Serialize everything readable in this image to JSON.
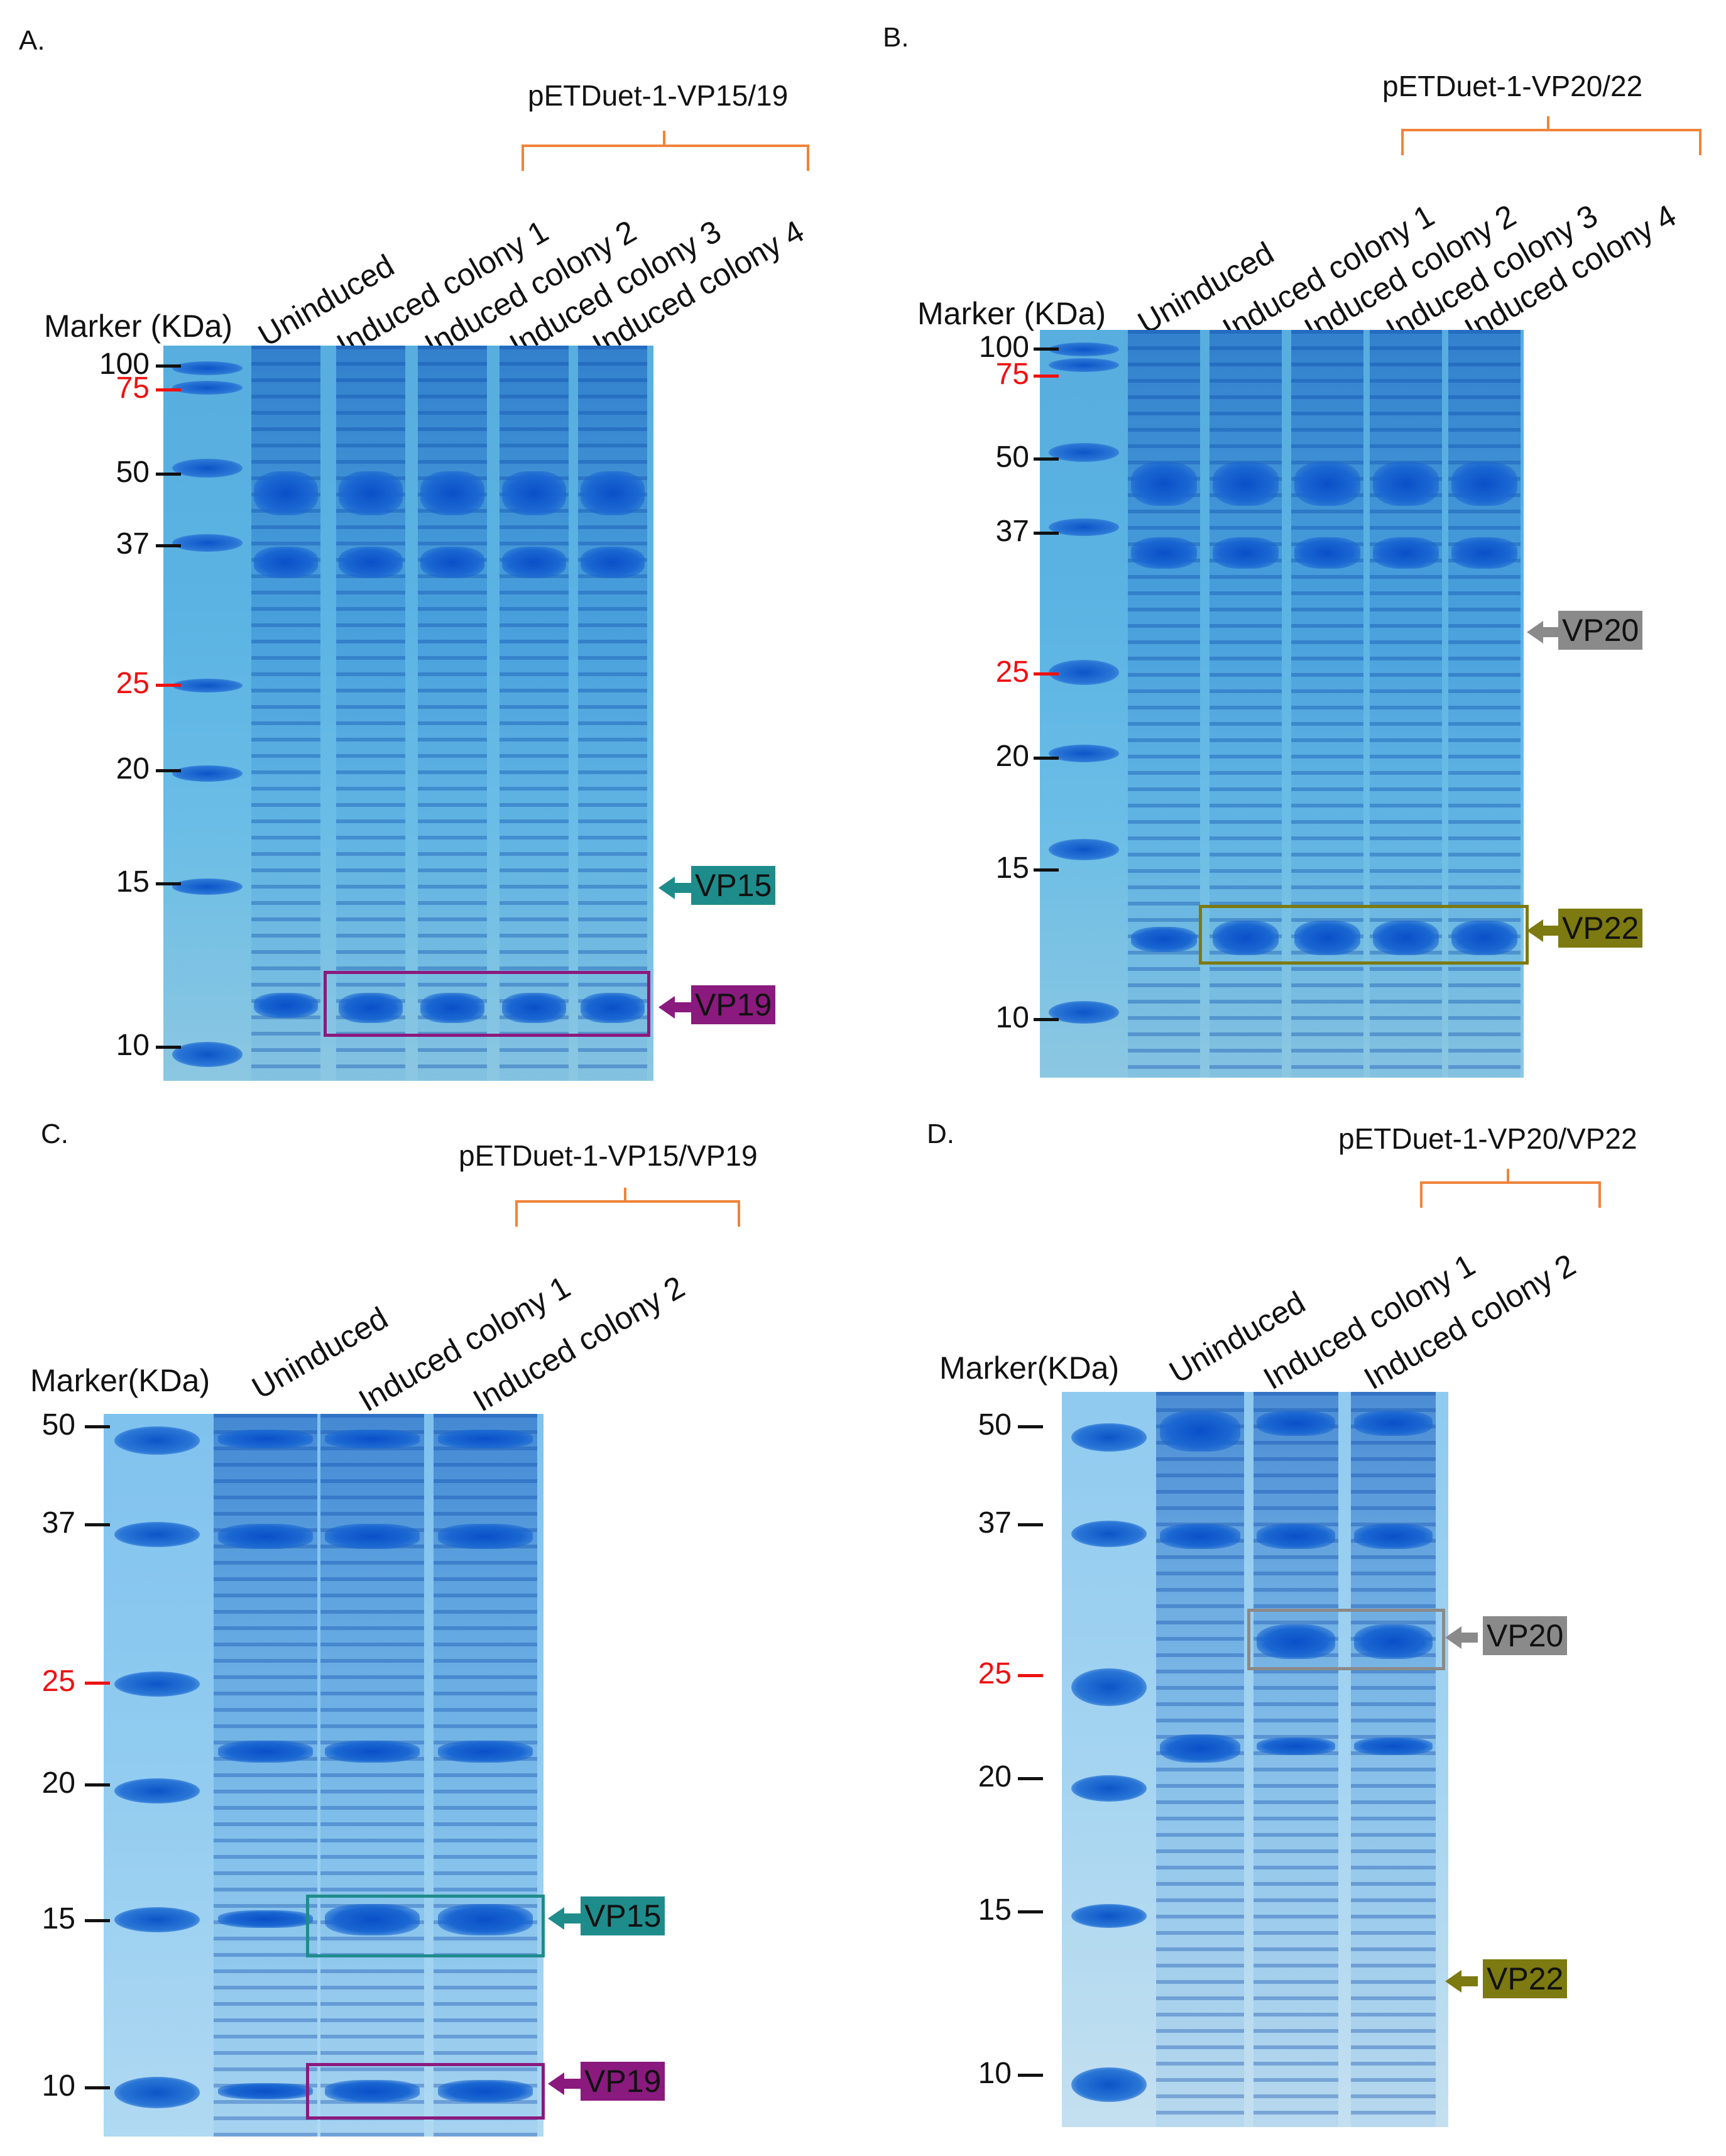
{
  "colors": {
    "teal": "#1f8c8c",
    "purple": "#8a1a7e",
    "gray": "#8a8a8a",
    "olive": "#7c7a10",
    "orange": "#f0833a",
    "red_marker": "#ee1111"
  },
  "panelA": {
    "label": "A.",
    "construct": "pETDuet-1-VP15/19",
    "marker_title": "Marker (KDa)",
    "lanes": [
      "Uninduced",
      "Induced colony 1",
      "Induced colony 2",
      "Induced colony 3",
      "Induced colony 4"
    ],
    "markers": [
      "100",
      "75",
      "50",
      "37",
      "25",
      "20",
      "15",
      "10"
    ],
    "tags": {
      "vp15": "VP15",
      "vp19": "VP19"
    }
  },
  "panelB": {
    "label": "B.",
    "construct": "pETDuet-1-VP20/22",
    "marker_title": "Marker (KDa)",
    "lanes": [
      "Uninduced",
      "Induced colony 1",
      "Induced colony 2",
      "Induced colony 3",
      "Induced colony 4"
    ],
    "markers": [
      "100",
      "75",
      "50",
      "37",
      "25",
      "20",
      "15",
      "10"
    ],
    "tags": {
      "vp20": "VP20",
      "vp22": "VP22"
    }
  },
  "panelC": {
    "label": "C.",
    "construct": "pETDuet-1-VP15/VP19",
    "marker_title": "Marker(KDa)",
    "lanes": [
      "Uninduced",
      "Induced colony 1",
      "Induced colony 2"
    ],
    "markers": [
      "50",
      "37",
      "25",
      "20",
      "15",
      "10"
    ],
    "tags": {
      "vp15": "VP15",
      "vp19": "VP19"
    }
  },
  "panelD": {
    "label": "D.",
    "construct": "pETDuet-1-VP20/VP22",
    "marker_title": "Marker(KDa)",
    "lanes": [
      "Uninduced",
      "Induced colony 1",
      "Induced colony 2"
    ],
    "markers": [
      "50",
      "37",
      "25",
      "20",
      "15",
      "10"
    ],
    "tags": {
      "vp20": "VP20",
      "vp22": "VP22"
    }
  }
}
